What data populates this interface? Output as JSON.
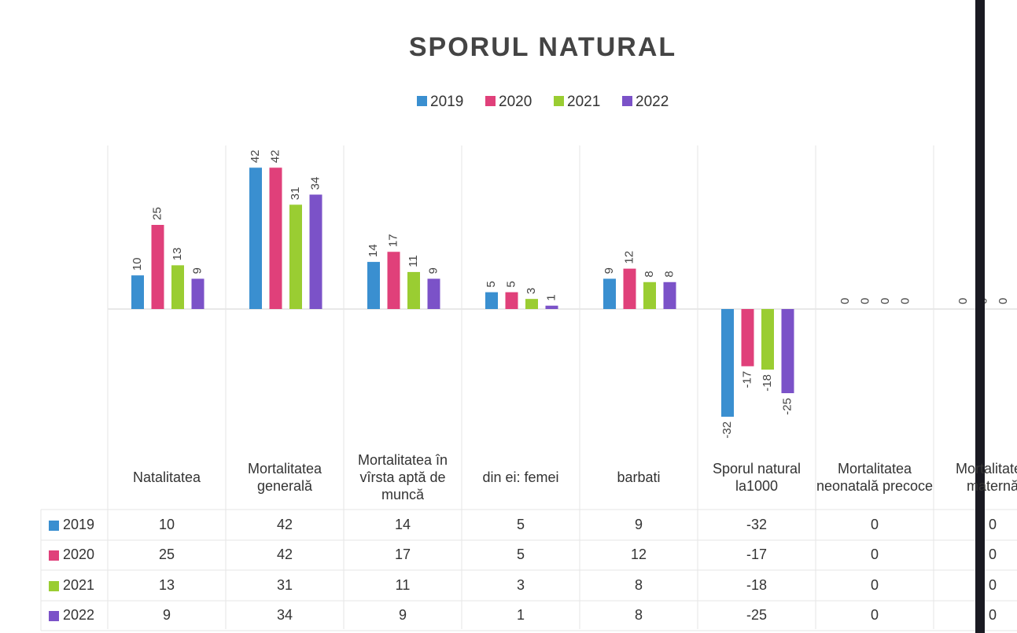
{
  "chart_data": {
    "type": "bar",
    "title": "SPORUL NATURAL",
    "categories": [
      "Natalitatea",
      "Mortalitatea generală",
      "Mortalitatea în vîrsta aptă de muncă",
      "din ei: femei",
      "barbati",
      "Sporul natural la1000",
      "Mortalitatea neonatală precoce",
      "Mortalitatea maternă"
    ],
    "series": [
      {
        "name": "2019",
        "color": "#3a8fd0",
        "values": [
          10,
          42,
          14,
          5,
          9,
          -32,
          0,
          0
        ]
      },
      {
        "name": "2020",
        "color": "#e0407a",
        "values": [
          25,
          42,
          17,
          5,
          12,
          -17,
          0,
          0
        ]
      },
      {
        "name": "2021",
        "color": "#9acd32",
        "values": [
          13,
          31,
          11,
          3,
          8,
          -18,
          0,
          0
        ]
      },
      {
        "name": "2022",
        "color": "#7b52c8",
        "values": [
          9,
          34,
          9,
          1,
          8,
          -25,
          0,
          0
        ]
      }
    ]
  }
}
